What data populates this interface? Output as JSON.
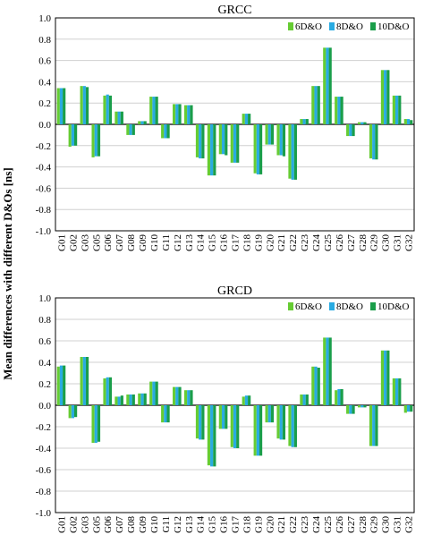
{
  "figure": {
    "ylabel": "Mean differences with different D&Os [ns]"
  },
  "chart_data": [
    {
      "type": "bar",
      "title": "GRCC",
      "ylabel": "Mean differences with different D&Os [ns]",
      "ylim": [
        -1.0,
        1.0
      ],
      "yticks": [
        "1.0",
        "0.8",
        "0.6",
        "0.4",
        "0.2",
        "0.0",
        "-0.2",
        "-0.4",
        "-0.6",
        "-0.8",
        "-1.0"
      ],
      "grid": true,
      "legend_position": "top-right",
      "categories": [
        "G01",
        "G02",
        "G03",
        "G05",
        "G06",
        "G07",
        "G08",
        "G09",
        "G10",
        "G11",
        "G12",
        "G13",
        "G14",
        "G15",
        "G16",
        "G17",
        "G18",
        "G19",
        "G20",
        "G21",
        "G22",
        "G23",
        "G24",
        "G25",
        "G26",
        "G27",
        "G28",
        "G29",
        "G30",
        "G31",
        "G32"
      ],
      "series": [
        {
          "name": "6D&O",
          "color": "#66cc33",
          "values": [
            0.34,
            -0.21,
            0.36,
            -0.31,
            0.27,
            0.12,
            -0.1,
            0.03,
            0.26,
            -0.13,
            0.19,
            0.18,
            -0.31,
            -0.48,
            -0.28,
            -0.36,
            0.1,
            -0.46,
            -0.19,
            -0.29,
            -0.51,
            0.05,
            0.36,
            0.72,
            0.26,
            -0.11,
            0.02,
            -0.32,
            0.51,
            0.27,
            0.05
          ]
        },
        {
          "name": "8D&O",
          "color": "#29abe2",
          "values": [
            0.34,
            -0.2,
            0.36,
            -0.3,
            0.28,
            0.12,
            -0.1,
            0.03,
            0.26,
            -0.13,
            0.19,
            0.18,
            -0.32,
            -0.48,
            -0.28,
            -0.36,
            0.1,
            -0.47,
            -0.19,
            -0.29,
            -0.52,
            0.05,
            0.36,
            0.72,
            0.26,
            -0.11,
            0.02,
            -0.33,
            0.51,
            0.27,
            0.05
          ]
        },
        {
          "name": "10D&O",
          "color": "#1a9e4a",
          "values": [
            0.34,
            -0.2,
            0.35,
            -0.3,
            0.27,
            0.12,
            -0.1,
            0.03,
            0.26,
            -0.13,
            0.19,
            0.18,
            -0.32,
            -0.48,
            -0.29,
            -0.36,
            0.1,
            -0.47,
            -0.19,
            -0.3,
            -0.52,
            0.05,
            0.36,
            0.72,
            0.26,
            -0.11,
            0.02,
            -0.33,
            0.51,
            0.27,
            0.04
          ]
        }
      ]
    },
    {
      "type": "bar",
      "title": "GRCD",
      "ylabel": "Mean differences with different D&Os [ns]",
      "ylim": [
        -1.0,
        1.0
      ],
      "yticks": [
        "1.0",
        "0.8",
        "0.6",
        "0.4",
        "0.2",
        "0.0",
        "-0.2",
        "-0.4",
        "-0.6",
        "-0.8",
        "-1.0"
      ],
      "grid": true,
      "legend_position": "top-right",
      "categories": [
        "G01",
        "G02",
        "G03",
        "G05",
        "G06",
        "G07",
        "G08",
        "G09",
        "G10",
        "G11",
        "G12",
        "G13",
        "G14",
        "G15",
        "G16",
        "G17",
        "G18",
        "G19",
        "G20",
        "G21",
        "G22",
        "G23",
        "G24",
        "G25",
        "G26",
        "G27",
        "G28",
        "G29",
        "G30",
        "G31",
        "G32"
      ],
      "series": [
        {
          "name": "6D&O",
          "color": "#66cc33",
          "values": [
            0.36,
            -0.12,
            0.45,
            -0.35,
            0.25,
            0.08,
            0.1,
            0.11,
            0.22,
            -0.16,
            0.17,
            0.14,
            -0.31,
            -0.56,
            -0.22,
            -0.39,
            0.08,
            -0.47,
            -0.16,
            -0.31,
            -0.38,
            0.1,
            0.36,
            0.63,
            0.14,
            -0.08,
            -0.02,
            -0.38,
            0.51,
            0.25,
            -0.07
          ]
        },
        {
          "name": "8D&O",
          "color": "#29abe2",
          "values": [
            0.37,
            -0.12,
            0.45,
            -0.35,
            0.26,
            0.08,
            0.1,
            0.11,
            0.22,
            -0.16,
            0.17,
            0.14,
            -0.32,
            -0.57,
            -0.22,
            -0.4,
            0.09,
            -0.47,
            -0.16,
            -0.32,
            -0.39,
            0.1,
            0.36,
            0.63,
            0.15,
            -0.08,
            -0.02,
            -0.38,
            0.51,
            0.25,
            -0.06
          ]
        },
        {
          "name": "10D&O",
          "color": "#1a9e4a",
          "values": [
            0.37,
            -0.11,
            0.45,
            -0.34,
            0.26,
            0.09,
            0.1,
            0.11,
            0.22,
            -0.16,
            0.17,
            0.14,
            -0.32,
            -0.57,
            -0.22,
            -0.4,
            0.09,
            -0.47,
            -0.16,
            -0.32,
            -0.39,
            0.1,
            0.35,
            0.63,
            0.15,
            -0.08,
            -0.02,
            -0.38,
            0.51,
            0.25,
            -0.06
          ]
        }
      ]
    }
  ]
}
